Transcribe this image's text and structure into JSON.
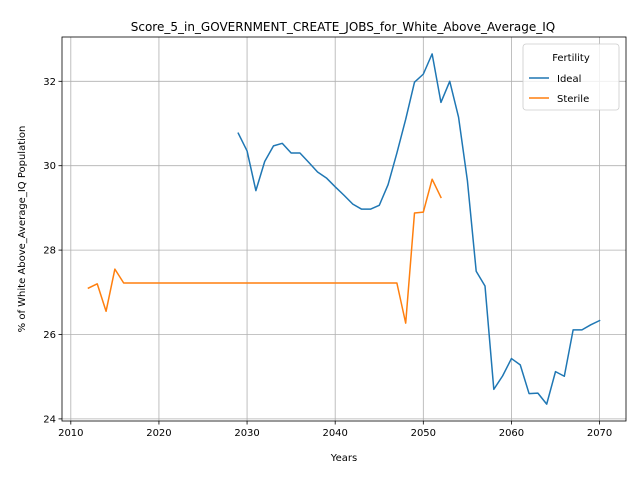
{
  "chart_data": {
    "type": "line",
    "title": "Score_5_in_GOVERNMENT_CREATE_JOBS_for_White_Above_Average_IQ",
    "xlabel": "Years",
    "ylabel": "% of White Above_Average_IQ Population",
    "xlim": [
      2009,
      2073
    ],
    "ylim": [
      23.95,
      33.05
    ],
    "xticks": [
      2010,
      2020,
      2030,
      2040,
      2050,
      2060,
      2070
    ],
    "yticks": [
      24,
      26,
      28,
      30,
      32
    ],
    "grid": true,
    "legend": {
      "title": "Fertility",
      "placement": "top-right"
    },
    "series": [
      {
        "name": "Ideal",
        "color": "#1f77b4",
        "x": [
          2029,
          2030,
          2031,
          2032,
          2033,
          2034,
          2035,
          2036,
          2037,
          2038,
          2039,
          2040,
          2041,
          2042,
          2043,
          2044,
          2045,
          2046,
          2047,
          2048,
          2049,
          2050,
          2051,
          2052,
          2053,
          2054,
          2055,
          2056,
          2057,
          2058,
          2059,
          2060,
          2061,
          2062,
          2063,
          2064,
          2065,
          2066,
          2067,
          2068,
          2069,
          2070
        ],
        "values": [
          30.77,
          30.35,
          29.41,
          30.1,
          30.47,
          30.53,
          30.3,
          30.3,
          30.08,
          29.85,
          29.71,
          29.5,
          29.3,
          29.09,
          28.97,
          28.97,
          29.06,
          29.55,
          30.3,
          31.1,
          31.98,
          32.17,
          32.65,
          31.5,
          32.0,
          31.15,
          29.65,
          27.5,
          27.15,
          24.7,
          25.02,
          25.43,
          25.28,
          24.6,
          24.61,
          24.35,
          25.12,
          25.01,
          26.11,
          26.11,
          26.23,
          26.33
        ]
      },
      {
        "name": "Sterile",
        "color": "#ff7f0e",
        "x": [
          2012,
          2013,
          2014,
          2015,
          2016,
          2017,
          2018,
          2019,
          2020,
          2021,
          2022,
          2023,
          2024,
          2025,
          2026,
          2027,
          2028,
          2029,
          2030,
          2031,
          2032,
          2033,
          2034,
          2035,
          2036,
          2037,
          2038,
          2039,
          2040,
          2041,
          2042,
          2043,
          2044,
          2045,
          2046,
          2047,
          2048,
          2049,
          2050,
          2051,
          2052
        ],
        "values": [
          27.1,
          27.2,
          26.55,
          27.55,
          27.22,
          27.22,
          27.22,
          27.22,
          27.22,
          27.22,
          27.22,
          27.22,
          27.22,
          27.22,
          27.22,
          27.22,
          27.22,
          27.22,
          27.22,
          27.22,
          27.22,
          27.22,
          27.22,
          27.22,
          27.22,
          27.22,
          27.22,
          27.22,
          27.22,
          27.22,
          27.22,
          27.22,
          27.22,
          27.22,
          27.22,
          27.22,
          26.27,
          28.88,
          28.9,
          29.68,
          29.25
        ]
      }
    ]
  }
}
